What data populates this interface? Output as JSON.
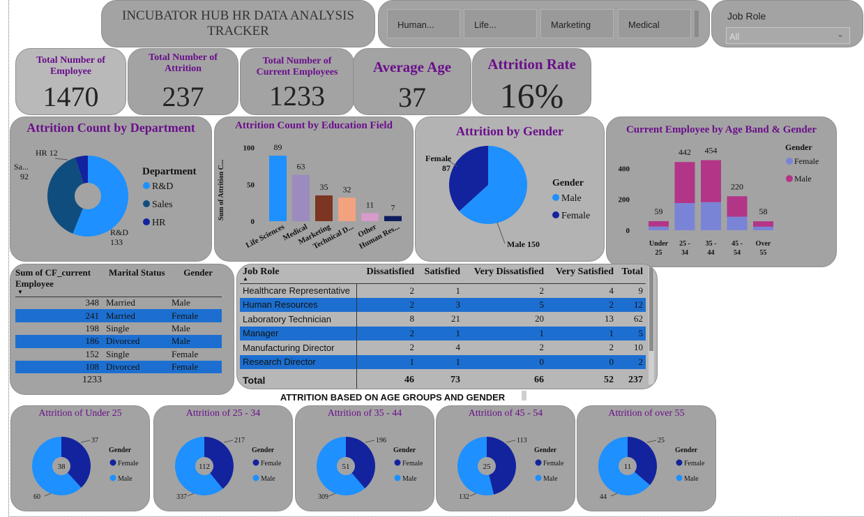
{
  "header": {
    "title": "INCUBATOR HUB HR DATA ANALYSIS TRACKER",
    "dept_buttons": [
      "Human...",
      "Life...",
      "Marketing",
      "Medical"
    ],
    "job_role_label": "Job Role",
    "job_role_value": "All"
  },
  "kpis": [
    {
      "label": "Total Number of Employee",
      "value": "1470"
    },
    {
      "label": "Total Number of Attrition",
      "value": "237"
    },
    {
      "label": "Total Number of Current Employees",
      "value": "1233"
    },
    {
      "label": "Average Age",
      "value": "37"
    },
    {
      "label": "Attrition Rate",
      "value": "16%"
    }
  ],
  "colors": {
    "card": "#a3a3a3",
    "accent_purple": "#6a0f8a",
    "light_blue": "#1e90ff",
    "navy": "#13239e",
    "sales_blue": "#0f4d7e",
    "magenta": "#b33587",
    "lavender": "#7a84d6",
    "row_blue": "#1c6fd0"
  },
  "chart_data": [
    {
      "type": "pie",
      "id": "dept",
      "title": "Attrition Count by Department",
      "legend_title": "Department",
      "labels": [
        "R&D",
        "Sales",
        "HR"
      ],
      "values": [
        133,
        92,
        12
      ],
      "display_labels": [
        "R&D",
        "Sa...",
        "HR"
      ],
      "colors": [
        "#1e90ff",
        "#0f4d7e",
        "#13239e"
      ]
    },
    {
      "type": "bar",
      "id": "edu",
      "title": "Attrition Count by Education Field",
      "ylabel": "Sum of Attrition C...",
      "categories": [
        "Life Sciences",
        "Medical",
        "Marketing",
        "Technical D...",
        "Other",
        "Human Res..."
      ],
      "values": [
        89,
        63,
        35,
        32,
        11,
        7
      ],
      "yticks": [
        0,
        50,
        100
      ],
      "ylim": [
        0,
        110
      ],
      "colors": [
        "#1e90ff",
        "#9b8bbf",
        "#7b3520",
        "#f2a27f",
        "#d79ac9",
        "#0f1c5e"
      ]
    },
    {
      "type": "pie",
      "id": "gender",
      "title": "Attrition by Gender",
      "legend_title": "Gender",
      "labels": [
        "Male",
        "Female"
      ],
      "values": [
        150,
        87
      ],
      "colors": [
        "#1e90ff",
        "#13239e"
      ]
    },
    {
      "type": "bar",
      "id": "ageband",
      "title": "Current Employee by Age Band & Gender",
      "legend_title": "Gender",
      "categories": [
        "Under 25",
        "25 - 34",
        "35 - 44",
        "45 - 54",
        "Over 55"
      ],
      "totals": [
        59,
        442,
        454,
        220,
        58
      ],
      "series": [
        {
          "name": "Female",
          "values": [
            24,
            176,
            182,
            88,
            23
          ],
          "color": "#7a84d6"
        },
        {
          "name": "Male",
          "values": [
            35,
            266,
            272,
            132,
            35
          ],
          "color": "#b33587"
        }
      ],
      "yticks": [
        0,
        200,
        400
      ],
      "ylim": [
        0,
        470
      ]
    },
    {
      "type": "table",
      "id": "marital",
      "columns": [
        "Sum of CF_current Employee",
        "Marital Status",
        "Gender"
      ],
      "rows": [
        [
          "348",
          "Married",
          "Male"
        ],
        [
          "241",
          "Married",
          "Female"
        ],
        [
          "198",
          "Single",
          "Male"
        ],
        [
          "186",
          "Divorced",
          "Male"
        ],
        [
          "152",
          "Single",
          "Female"
        ],
        [
          "108",
          "Divorced",
          "Female"
        ]
      ],
      "total": "1233"
    },
    {
      "type": "table",
      "id": "jobrole",
      "columns": [
        "Job Role",
        "Dissatisfied",
        "Satisfied",
        "Very Dissatisfied",
        "Very Satisfied",
        "Total"
      ],
      "rows": [
        [
          "Healthcare Representative",
          "2",
          "1",
          "2",
          "4",
          "9"
        ],
        [
          "Human Resources",
          "2",
          "3",
          "5",
          "2",
          "12"
        ],
        [
          "Laboratory Technician",
          "8",
          "21",
          "20",
          "13",
          "62"
        ],
        [
          "Manager",
          "2",
          "1",
          "1",
          "1",
          "5"
        ],
        [
          "Manufacturing Director",
          "2",
          "4",
          "2",
          "2",
          "10"
        ],
        [
          "Research Director",
          "1",
          "1",
          "0",
          "0",
          "2"
        ]
      ],
      "total_row": [
        "Total",
        "46",
        "73",
        "66",
        "52",
        "237"
      ]
    }
  ],
  "age_section": {
    "heading": "ATTRITION BASED ON AGE GROUPS AND GENDER",
    "legend_title": "Gender",
    "legend_labels": [
      "Female",
      "Male"
    ],
    "donuts": [
      {
        "title": "Attrition of Under 25",
        "center": "38",
        "female": 37,
        "male": 60
      },
      {
        "title": "Attrition of 25 - 34",
        "center": "112",
        "female": 217,
        "male": 337
      },
      {
        "title": "Attrition of 35 - 44",
        "center": "51",
        "female": 196,
        "male": 309
      },
      {
        "title": "Attrition of 45 - 54",
        "center": "25",
        "female": 113,
        "male": 132
      },
      {
        "title": "Attrition of over 55",
        "center": "11",
        "female": 25,
        "male": 44
      }
    ]
  }
}
